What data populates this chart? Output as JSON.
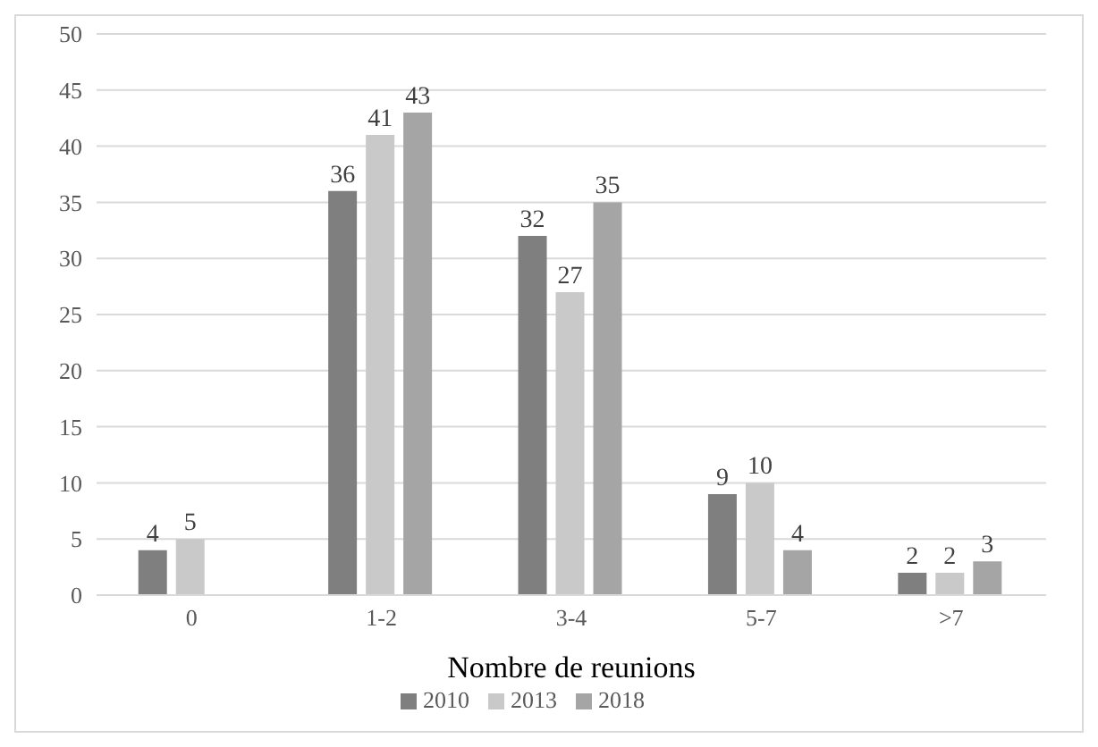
{
  "chart_data": {
    "type": "bar",
    "xlabel": "Nombre de reunions",
    "categories": [
      "0",
      "1-2",
      "3-4",
      "5-7",
      ">7"
    ],
    "series": [
      {
        "name": "2010",
        "color": "#7f7f7f",
        "values": [
          4,
          36,
          32,
          9,
          2
        ]
      },
      {
        "name": "2013",
        "color": "#c9c9c9",
        "values": [
          5,
          41,
          27,
          10,
          2
        ]
      },
      {
        "name": "2018",
        "color": "#a5a5a5",
        "values": [
          null,
          43,
          35,
          4,
          3
        ]
      }
    ],
    "ylim": [
      0,
      50
    ],
    "yticks": [
      0,
      5,
      10,
      15,
      20,
      25,
      30,
      35,
      40,
      45,
      50
    ],
    "grid": "y",
    "legend": "bottom",
    "data_labels": true
  }
}
